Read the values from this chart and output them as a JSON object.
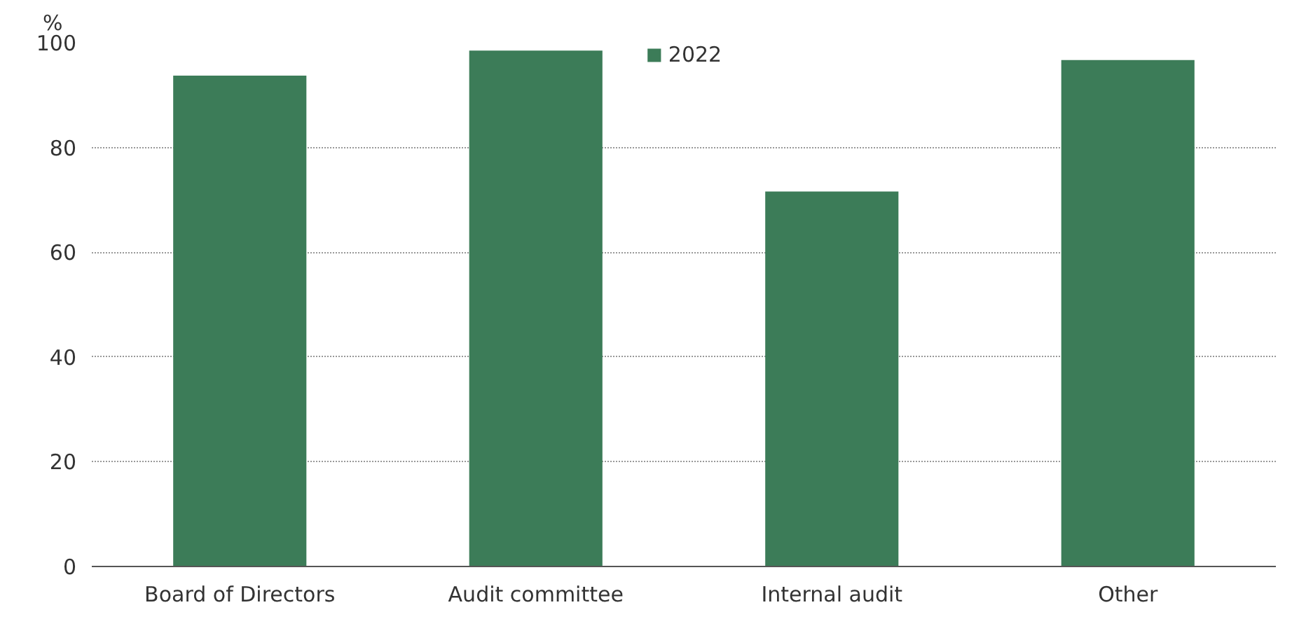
{
  "chart_data": {
    "type": "bar",
    "ylabel": "%",
    "categories": [
      "Board of Directors",
      "Audit committee",
      "Internal audit",
      "Other"
    ],
    "series": [
      {
        "name": "2022",
        "color": "#3c7c58",
        "values": [
          93.7,
          98.5,
          71.6,
          96.7
        ]
      }
    ],
    "ylim": [
      0,
      100
    ],
    "yticks": [
      0,
      20,
      40,
      60,
      80,
      100
    ],
    "grid": "y",
    "legend": "top"
  }
}
